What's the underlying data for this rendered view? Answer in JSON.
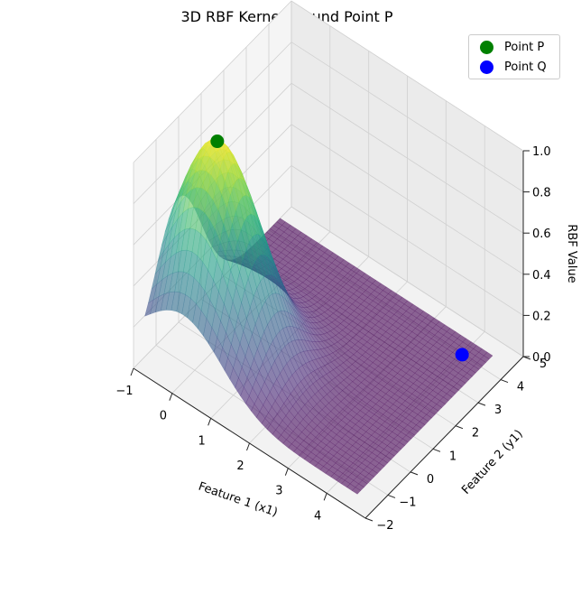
{
  "chart_data": {
    "type": "surface3d",
    "title": "3D RBF Kernel around Point P",
    "xlabel": "Feature 1 (x1)",
    "ylabel": "Feature 2 (y1)",
    "zlabel": "RBF Value",
    "xlim": [
      -1,
      5
    ],
    "ylim": [
      -2,
      5
    ],
    "zlim": [
      0,
      1
    ],
    "x_ticks": [
      "−1",
      "0",
      "1",
      "2",
      "3",
      "4"
    ],
    "y_ticks": [
      "−2",
      "−1",
      "0",
      "1",
      "2",
      "3",
      "4",
      "5"
    ],
    "z_ticks": [
      "0.0",
      "0.2",
      "0.4",
      "0.6",
      "0.8",
      "1.0"
    ],
    "surface": {
      "function": "exp(-gamma * ((x1 - px)^2 + (y1 - py)^2))",
      "gamma": 0.5,
      "x_range": [
        -1,
        4.5
      ],
      "y_range": [
        -1.5,
        4.5
      ],
      "colormap": "viridis",
      "alpha": 0.6
    },
    "points": [
      {
        "name": "Point P",
        "x": 0,
        "y": 0,
        "z": 1.0,
        "color": "#008000"
      },
      {
        "name": "Point Q",
        "x": 4,
        "y": 4,
        "z": 0.0,
        "color": "#0000ff"
      }
    ],
    "legend": {
      "position": "top-right",
      "entries": [
        "Point P",
        "Point Q"
      ]
    },
    "grid": true
  }
}
